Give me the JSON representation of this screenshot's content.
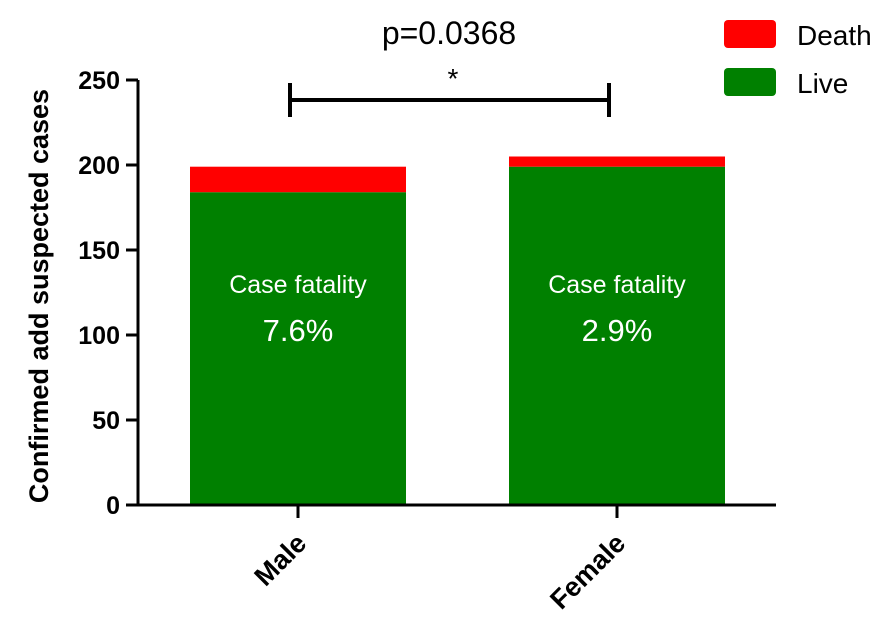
{
  "chart_data": {
    "type": "bar",
    "stacked": true,
    "categories": [
      "Male",
      "Female"
    ],
    "series": [
      {
        "name": "Live",
        "color": "#008000",
        "values": [
          184,
          199
        ]
      },
      {
        "name": "Death",
        "color": "#ff0000",
        "values": [
          15,
          6
        ]
      }
    ],
    "ylabel": "Confirmed add suspected cases",
    "ylim": [
      0,
      250
    ],
    "yticks": [
      0,
      50,
      100,
      150,
      200,
      250
    ],
    "yticks_labels": [
      "0",
      "50",
      "100",
      "150",
      "200",
      "250"
    ],
    "legend_position": "top-right",
    "significance": {
      "pvalue_label": "p=0.0368",
      "marker": "*",
      "between": [
        "Male",
        "Female"
      ]
    },
    "annotations": [
      {
        "category": "Male",
        "line1": "Case fatality",
        "line2": "7.6%"
      },
      {
        "category": "Female",
        "line1": "Case fatality",
        "line2": "2.9%"
      }
    ]
  }
}
